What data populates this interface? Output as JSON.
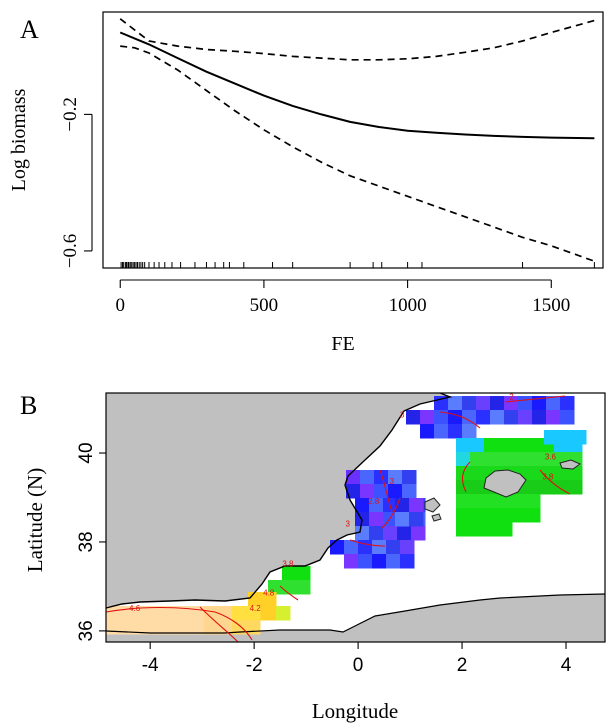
{
  "panel_a": {
    "letter": "A"
  },
  "panel_b": {
    "letter": "B"
  },
  "chart_data": [
    {
      "type": "line",
      "panel": "A",
      "title": "",
      "xlabel": "FE",
      "ylabel": "Log biomass",
      "xlim": [
        -60,
        1680
      ],
      "ylim": [
        -0.65,
        0.1
      ],
      "x_ticks": [
        0,
        500,
        1000,
        1500
      ],
      "x_tick_labels": [
        "0",
        "500",
        "1000",
        "1500"
      ],
      "y_ticks": [
        -0.6,
        -0.2
      ],
      "y_tick_labels": [
        "−0.6",
        "−0.2"
      ],
      "grid": false,
      "legend": "none",
      "series": [
        {
          "role": "fit",
          "style": "solid",
          "x": [
            0,
            100,
            200,
            300,
            400,
            500,
            600,
            700,
            800,
            900,
            1000,
            1100,
            1200,
            1300,
            1400,
            1500,
            1650
          ],
          "y": [
            0.04,
            0.005,
            -0.035,
            -0.075,
            -0.11,
            -0.145,
            -0.175,
            -0.2,
            -0.222,
            -0.237,
            -0.248,
            -0.254,
            -0.259,
            -0.263,
            -0.266,
            -0.268,
            -0.27
          ]
        },
        {
          "role": "upper-ci",
          "style": "dashed",
          "x": [
            0,
            100,
            200,
            300,
            400,
            500,
            600,
            700,
            800,
            900,
            1000,
            1100,
            1200,
            1300,
            1400,
            1500,
            1650
          ],
          "y": [
            0.08,
            0.015,
            0.0,
            -0.01,
            -0.015,
            -0.022,
            -0.03,
            -0.035,
            -0.04,
            -0.04,
            -0.037,
            -0.03,
            -0.018,
            -0.005,
            0.015,
            0.04,
            0.075
          ]
        },
        {
          "role": "lower-ci",
          "style": "dashed",
          "x": [
            0,
            50,
            100,
            200,
            300,
            400,
            500,
            600,
            700,
            800,
            900,
            1000,
            1100,
            1200,
            1300,
            1400,
            1500,
            1650
          ],
          "y": [
            0.0,
            -0.005,
            -0.02,
            -0.07,
            -0.13,
            -0.19,
            -0.245,
            -0.295,
            -0.34,
            -0.38,
            -0.41,
            -0.44,
            -0.47,
            -0.5,
            -0.53,
            -0.56,
            -0.585,
            -0.63
          ]
        }
      ],
      "rug": [
        3,
        8,
        12,
        18,
        22,
        27,
        30,
        35,
        40,
        45,
        50,
        55,
        60,
        66,
        72,
        78,
        85,
        100,
        118,
        135,
        155,
        180,
        210,
        260,
        300,
        330,
        360,
        380,
        430,
        530,
        600,
        800,
        880,
        910,
        1000,
        1050,
        1400,
        1650
      ]
    },
    {
      "type": "heatmap",
      "panel": "B",
      "title": "",
      "xlabel": "Longitude",
      "ylabel": "Latitude (N)",
      "xlim": [
        -4.85,
        4.75
      ],
      "ylim": [
        35.75,
        41.35
      ],
      "x_ticks": [
        -4,
        -2,
        0,
        2,
        4
      ],
      "x_tick_labels": [
        "-4",
        "-2",
        "0",
        "2",
        "4"
      ],
      "y_ticks": [
        36,
        38,
        40
      ],
      "y_tick_labels": [
        "36",
        "38",
        "40"
      ],
      "grid": false,
      "legend": "none",
      "colors": {
        "land": "#c0c0c0",
        "sea": "#ffffff",
        "contour": "#e01010",
        "low": "#1a1aff",
        "mid": "#10e010",
        "high": "#ffd028",
        "very_high": "#ffd8a0"
      },
      "contour_labels": [
        {
          "text": "2",
          "lon": 2.95,
          "lat": 41.2
        },
        {
          "text": "3",
          "lon": 0.85,
          "lat": 40.8
        },
        {
          "text": "3.6",
          "lon": 3.7,
          "lat": 39.85
        },
        {
          "text": "3.8",
          "lon": 3.65,
          "lat": 39.4
        },
        {
          "text": "3",
          "lon": 0.65,
          "lat": 39.3
        },
        {
          "text": "2.8",
          "lon": 0.3,
          "lat": 38.85
        },
        {
          "text": "3",
          "lon": -0.2,
          "lat": 38.35
        },
        {
          "text": "3.8",
          "lon": -1.35,
          "lat": 37.45
        },
        {
          "text": "4.8",
          "lon": -1.72,
          "lat": 36.8
        },
        {
          "text": "4.2",
          "lon": -1.98,
          "lat": 36.45
        },
        {
          "text": "4.6",
          "lon": -4.3,
          "lat": 36.45
        }
      ]
    }
  ]
}
